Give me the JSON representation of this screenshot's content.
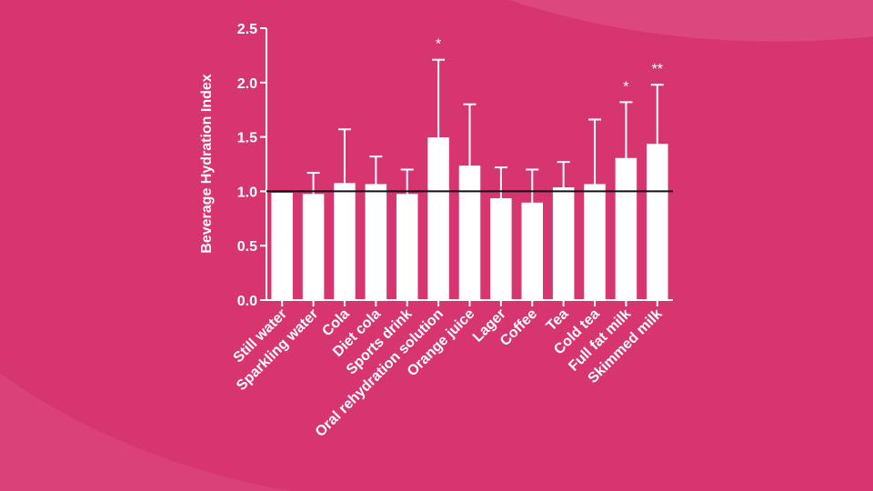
{
  "colors": {
    "background": "#d7356f",
    "background_light": "#e0588a",
    "bar_fill": "#ffffff",
    "ink": "#ffffff",
    "reference_line": "#111111"
  },
  "chart_data": {
    "type": "bar",
    "title": "",
    "xlabel": "",
    "ylabel": "Beverage Hydration Index",
    "ylim": [
      0,
      2.5
    ],
    "yticks": [
      0.0,
      0.5,
      1.0,
      1.5,
      2.0,
      2.5
    ],
    "ytick_labels": [
      "0.0",
      "0.5",
      "1.0",
      "1.5",
      "2.0",
      "2.5"
    ],
    "reference_line": 1.0,
    "grid": false,
    "legend": "none",
    "categories": [
      "Still water",
      "Sparkling water",
      "Cola",
      "Diet cola",
      "Sports drink",
      "Oral rehydration solution",
      "Orange juice",
      "Lager",
      "Coffee",
      "Tea",
      "Cold tea",
      "Full fat milk",
      "Skimmed milk"
    ],
    "values": [
      0.98,
      0.97,
      1.07,
      1.06,
      0.97,
      1.49,
      1.23,
      0.93,
      0.89,
      1.03,
      1.06,
      1.3,
      1.43
    ],
    "error_upper": [
      0.98,
      1.17,
      1.57,
      1.32,
      1.2,
      2.21,
      1.8,
      1.22,
      1.2,
      1.27,
      1.66,
      1.82,
      1.98
    ],
    "annotations": [
      "",
      "",
      "",
      "",
      "",
      "*",
      "",
      "",
      "",
      "",
      "",
      "*",
      "**"
    ]
  }
}
